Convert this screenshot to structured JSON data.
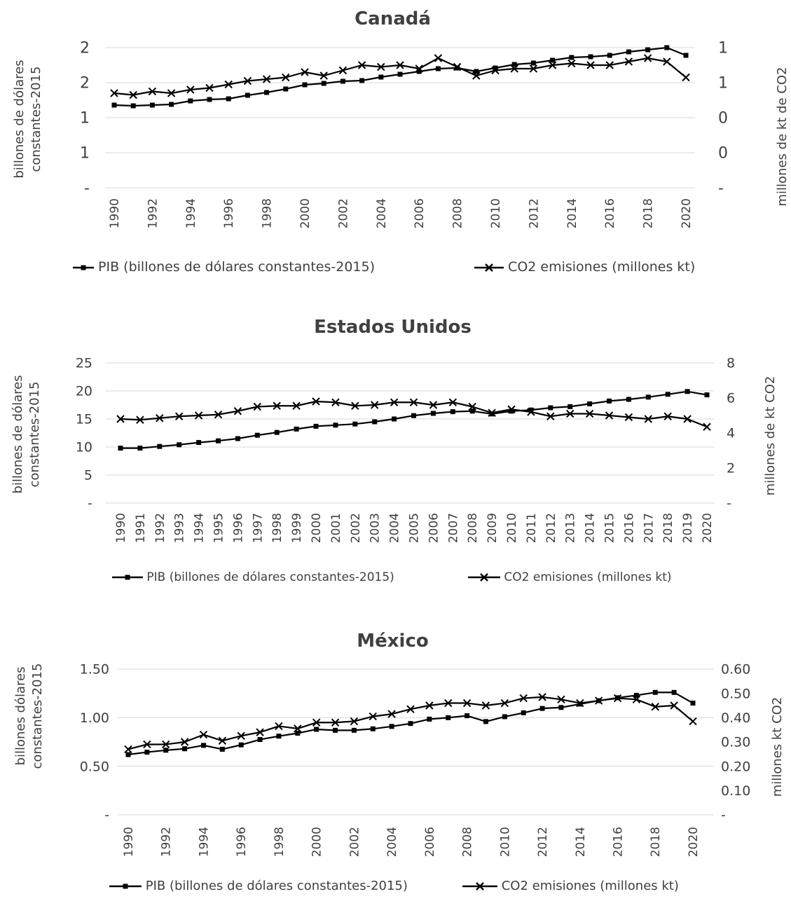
{
  "charts": [
    {
      "id": "canada",
      "title": "Canadá",
      "ylabel_left": [
        "billones de dólares",
        "constantes-2015"
      ],
      "ylabel_right": "millones de kt de CO2",
      "legend": {
        "pib": "PIB (billones de dólares constantes-2015)",
        "co2": "CO2 emisiones (millones kt)"
      }
    },
    {
      "id": "usa",
      "title": "Estados Unidos",
      "ylabel_left": [
        "billones de dólares",
        "constantes-2015"
      ],
      "ylabel_right": "millones de kt CO2",
      "legend": {
        "pib": "PIB (billones de dólares constantes-2015)",
        "co2": "CO2 emisiones (millones kt)"
      }
    },
    {
      "id": "mexico",
      "title": "México",
      "ylabel_left": [
        "billones dólares",
        "constantes-2015"
      ],
      "ylabel_right": "millones kt CO2",
      "legend": {
        "pib": "PIB (billones de dólares constantes-2015)",
        "co2": "CO2 emisiones (millones kt)"
      }
    }
  ],
  "chart_data": [
    {
      "type": "line",
      "title": "Canadá",
      "x": [
        1990,
        1991,
        1992,
        1993,
        1994,
        1995,
        1996,
        1997,
        1998,
        1999,
        2000,
        2001,
        2002,
        2003,
        2004,
        2005,
        2006,
        2007,
        2008,
        2009,
        2010,
        2011,
        2012,
        2013,
        2014,
        2015,
        2016,
        2017,
        2018,
        2019,
        2020
      ],
      "x_tick_labels": [
        "1990",
        "1992",
        "1994",
        "1996",
        "1998",
        "2000",
        "2002",
        "2004",
        "2006",
        "2008",
        "2010",
        "2012",
        "2014",
        "2016",
        "2018",
        "2020"
      ],
      "left_axis": {
        "label": "billones de dólares constantes-2015",
        "ylim": [
          0,
          2
        ],
        "tick_labels": [
          "-",
          "1",
          "1",
          "2",
          "2"
        ]
      },
      "right_axis": {
        "label": "millones de kt de CO2",
        "ylim": [
          0,
          0.8
        ],
        "tick_labels": [
          "-",
          "0",
          "0",
          "1",
          "1"
        ]
      },
      "series": [
        {
          "name": "PIB (billones de dólares constantes-2015)",
          "axis": "left",
          "marker": "square",
          "values": [
            1.18,
            1.17,
            1.18,
            1.19,
            1.24,
            1.26,
            1.27,
            1.32,
            1.36,
            1.41,
            1.47,
            1.49,
            1.52,
            1.53,
            1.58,
            1.62,
            1.66,
            1.7,
            1.71,
            1.66,
            1.71,
            1.76,
            1.78,
            1.82,
            1.86,
            1.87,
            1.89,
            1.94,
            1.97,
            2.0,
            1.89
          ]
        },
        {
          "name": "CO2 emisiones (millones kt)",
          "axis": "right",
          "marker": "x",
          "values": [
            0.54,
            0.53,
            0.55,
            0.54,
            0.56,
            0.57,
            0.59,
            0.61,
            0.62,
            0.63,
            0.66,
            0.64,
            0.67,
            0.7,
            0.69,
            0.7,
            0.68,
            0.74,
            0.69,
            0.64,
            0.67,
            0.68,
            0.68,
            0.7,
            0.71,
            0.7,
            0.7,
            0.72,
            0.74,
            0.72,
            0.63
          ]
        }
      ]
    },
    {
      "type": "line",
      "title": "Estados Unidos",
      "x": [
        1990,
        1991,
        1992,
        1993,
        1994,
        1995,
        1996,
        1997,
        1998,
        1999,
        2000,
        2001,
        2002,
        2003,
        2004,
        2005,
        2006,
        2007,
        2008,
        2009,
        2010,
        2011,
        2012,
        2013,
        2014,
        2015,
        2016,
        2017,
        2018,
        2019,
        2020
      ],
      "x_tick_labels": [
        "1990",
        "1991",
        "1992",
        "1993",
        "1994",
        "1995",
        "1996",
        "1997",
        "1998",
        "1999",
        "2000",
        "2001",
        "2002",
        "2003",
        "2004",
        "2005",
        "2006",
        "2007",
        "2008",
        "2009",
        "2010",
        "2011",
        "2012",
        "2013",
        "2014",
        "2015",
        "2016",
        "2017",
        "2018",
        "2019",
        "2020"
      ],
      "left_axis": {
        "label": "billones de dólares constantes-2015",
        "ylim": [
          0,
          25
        ],
        "tick_labels": [
          "-",
          "5",
          "10",
          "15",
          "20",
          "25"
        ]
      },
      "right_axis": {
        "label": "millones de kt CO2",
        "ylim": [
          0,
          8
        ],
        "tick_labels": [
          "-",
          "2",
          "4",
          "6",
          "8"
        ]
      },
      "series": [
        {
          "name": "PIB (billones de dólares constantes-2015)",
          "axis": "left",
          "marker": "square",
          "values": [
            9.8,
            9.8,
            10.1,
            10.4,
            10.8,
            11.1,
            11.5,
            12.1,
            12.6,
            13.2,
            13.7,
            13.9,
            14.1,
            14.5,
            15.0,
            15.6,
            16.0,
            16.3,
            16.4,
            15.9,
            16.4,
            16.6,
            17.0,
            17.2,
            17.7,
            18.2,
            18.5,
            18.9,
            19.4,
            19.9,
            19.3
          ]
        },
        {
          "name": "CO2 emisiones (millones kt)",
          "axis": "right",
          "marker": "x",
          "values": [
            4.8,
            4.75,
            4.85,
            4.95,
            5.0,
            5.05,
            5.25,
            5.5,
            5.55,
            5.55,
            5.8,
            5.75,
            5.55,
            5.6,
            5.75,
            5.75,
            5.6,
            5.75,
            5.5,
            5.15,
            5.35,
            5.2,
            4.95,
            5.1,
            5.1,
            5.0,
            4.9,
            4.8,
            4.95,
            4.8,
            4.35
          ]
        }
      ]
    },
    {
      "type": "line",
      "title": "México",
      "x": [
        1990,
        1991,
        1992,
        1993,
        1994,
        1995,
        1996,
        1997,
        1998,
        1999,
        2000,
        2001,
        2002,
        2003,
        2004,
        2005,
        2006,
        2007,
        2008,
        2009,
        2010,
        2011,
        2012,
        2013,
        2014,
        2015,
        2016,
        2017,
        2018,
        2019,
        2020
      ],
      "x_tick_labels": [
        "1990",
        "1992",
        "1994",
        "1996",
        "1998",
        "2000",
        "2002",
        "2004",
        "2006",
        "2008",
        "2010",
        "2012",
        "2014",
        "2016",
        "2018",
        "2020"
      ],
      "left_axis": {
        "label": "billones dólares constantes-2015",
        "ylim": [
          0,
          1.5
        ],
        "tick_labels": [
          "-",
          "0.50",
          "1.00",
          "1.50"
        ]
      },
      "right_axis": {
        "label": "millones kt CO2",
        "ylim": [
          0,
          0.6
        ],
        "tick_labels": [
          "-",
          "0.10",
          "0.20",
          "0.30",
          "0.40",
          "0.50",
          "0.60"
        ]
      },
      "series": [
        {
          "name": "PIB (billones de dólares constantes-2015)",
          "axis": "left",
          "marker": "square",
          "values": [
            0.62,
            0.645,
            0.665,
            0.68,
            0.715,
            0.675,
            0.72,
            0.775,
            0.81,
            0.84,
            0.88,
            0.87,
            0.87,
            0.885,
            0.91,
            0.94,
            0.985,
            1.0,
            1.02,
            0.96,
            1.01,
            1.05,
            1.095,
            1.105,
            1.14,
            1.175,
            1.205,
            1.23,
            1.26,
            1.26,
            1.15
          ]
        },
        {
          "name": "CO2 emisiones (millones kt)",
          "axis": "right",
          "marker": "x",
          "values": [
            0.27,
            0.29,
            0.29,
            0.3,
            0.33,
            0.305,
            0.325,
            0.34,
            0.365,
            0.355,
            0.38,
            0.38,
            0.385,
            0.405,
            0.415,
            0.435,
            0.45,
            0.46,
            0.46,
            0.45,
            0.46,
            0.48,
            0.485,
            0.475,
            0.46,
            0.47,
            0.48,
            0.475,
            0.445,
            0.45,
            0.385
          ]
        }
      ]
    }
  ]
}
